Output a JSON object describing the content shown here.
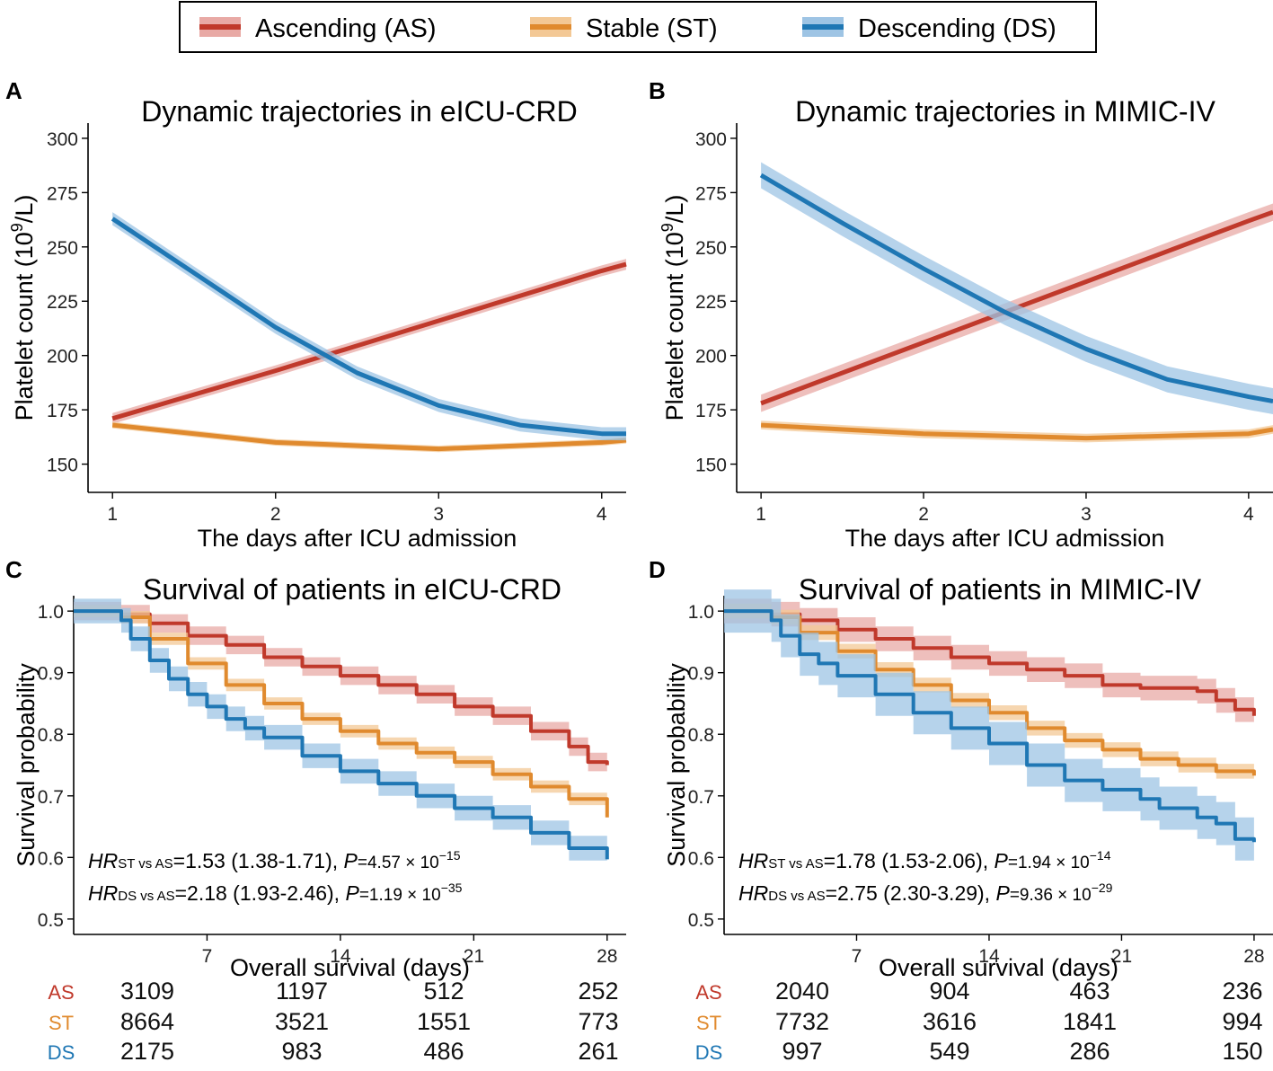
{
  "legend": {
    "items": [
      {
        "name": "Ascending (AS)",
        "color": "#c0392b"
      },
      {
        "name": "Stable (ST)",
        "color": "#e08a2e"
      },
      {
        "name": "Descending (DS)",
        "color": "#1f77b4"
      }
    ]
  },
  "colors": {
    "AS": "#c0392b",
    "ST": "#e08a2e",
    "DS": "#1f77b4",
    "AS_band": "#e8a9a5",
    "ST_band": "#f3c895",
    "DS_band": "#9ec4e4"
  },
  "chart_data": [
    {
      "panel": "A",
      "type": "line",
      "title": "Dynamic trajectories in eICU-CRD",
      "xlabel": "The days after ICU admission",
      "ylabel_main": "Platelet count  (10",
      "ylabel_sup": "9",
      "ylabel_end": "/L)",
      "xlim": [
        0.85,
        4.15
      ],
      "ylim": [
        137,
        307
      ],
      "xticks": [
        1,
        2,
        3,
        4
      ],
      "yticks": [
        150,
        175,
        200,
        225,
        250,
        275,
        300
      ],
      "series": [
        {
          "name": "AS",
          "x": [
            1,
            2,
            3,
            4,
            4.15
          ],
          "y": [
            171,
            193,
            216,
            239,
            242
          ],
          "band": 2.5
        },
        {
          "name": "ST",
          "x": [
            1,
            2,
            3,
            4,
            4.15
          ],
          "y": [
            168,
            160,
            157,
            160,
            161
          ],
          "band": 1.5
        },
        {
          "name": "DS",
          "x": [
            1,
            1.5,
            2,
            2.5,
            3,
            3.5,
            4,
            4.15
          ],
          "y": [
            263,
            238,
            213,
            192,
            177,
            168,
            164,
            164
          ],
          "band": 3
        }
      ]
    },
    {
      "panel": "B",
      "type": "line",
      "title": "Dynamic trajectories in MIMIC-IV",
      "xlabel": "The days after ICU admission",
      "ylabel_main": "Platelet count  (10",
      "ylabel_sup": "9",
      "ylabel_end": "/L)",
      "xlim": [
        0.85,
        4.15
      ],
      "ylim": [
        137,
        307
      ],
      "xticks": [
        1,
        2,
        3,
        4
      ],
      "yticks": [
        150,
        175,
        200,
        225,
        250,
        275,
        300
      ],
      "series": [
        {
          "name": "AS",
          "x": [
            1,
            2,
            3,
            4,
            4.15
          ],
          "y": [
            178,
            206,
            234,
            262,
            266
          ],
          "band": 4
        },
        {
          "name": "ST",
          "x": [
            1,
            2,
            3,
            4,
            4.15
          ],
          "y": [
            168,
            164,
            162,
            164,
            166
          ],
          "band": 2
        },
        {
          "name": "DS",
          "x": [
            1,
            1.5,
            2,
            2.5,
            3,
            3.5,
            4,
            4.15
          ],
          "y": [
            283,
            261,
            240,
            220,
            203,
            189,
            181,
            179
          ],
          "band": 6
        }
      ]
    },
    {
      "panel": "C",
      "type": "line",
      "title": "Survival of patients in eICU-CRD",
      "xlabel": "Overall survival (days)",
      "ylabel": "Survival probability",
      "xlim": [
        0,
        29
      ],
      "ylim": [
        0.475,
        1.025
      ],
      "xticks": [
        7,
        14,
        21,
        28
      ],
      "yticks": [
        0.5,
        0.6,
        0.7,
        0.8,
        0.9,
        1.0
      ],
      "series": [
        {
          "name": "AS",
          "x": [
            0,
            1.5,
            2.5,
            4,
            6,
            8,
            10,
            12,
            14,
            16,
            18,
            20,
            22,
            24,
            26,
            27,
            28
          ],
          "y": [
            1,
            1,
            0.995,
            0.98,
            0.96,
            0.945,
            0.925,
            0.91,
            0.895,
            0.88,
            0.865,
            0.845,
            0.83,
            0.805,
            0.78,
            0.755,
            0.75
          ],
          "band": 0.015
        },
        {
          "name": "ST",
          "x": [
            0,
            1.5,
            2.5,
            4,
            6,
            8,
            10,
            12,
            14,
            16,
            18,
            20,
            22,
            24,
            26,
            28
          ],
          "y": [
            1,
            1,
            0.99,
            0.955,
            0.915,
            0.88,
            0.85,
            0.825,
            0.805,
            0.785,
            0.77,
            0.755,
            0.735,
            0.715,
            0.695,
            0.665
          ],
          "band": 0.01
        },
        {
          "name": "DS",
          "x": [
            0,
            1.5,
            2.5,
            3,
            4,
            5,
            6,
            7,
            8,
            9,
            10,
            12,
            14,
            16,
            18,
            20,
            22,
            24,
            26,
            28
          ],
          "y": [
            1,
            1,
            0.985,
            0.955,
            0.92,
            0.89,
            0.865,
            0.845,
            0.825,
            0.81,
            0.795,
            0.765,
            0.74,
            0.72,
            0.7,
            0.68,
            0.665,
            0.64,
            0.615,
            0.597
          ],
          "band": 0.02
        }
      ],
      "annotations": [
        {
          "hr": "HR",
          "sub": "ST vs AS",
          "value": "=1.53 (1.38-1.71), ",
          "p": "P",
          "pval": "=4.57 × 10",
          "exp": "−15"
        },
        {
          "hr": "HR",
          "sub": "DS vs AS",
          "value": "=2.18 (1.93-2.46), ",
          "p": "P",
          "pval": "=1.19 × 10",
          "exp": "−35"
        }
      ],
      "risk_table": {
        "rows": [
          {
            "label": "AS",
            "values": [
              "3109",
              "1197",
              "512",
              "252"
            ]
          },
          {
            "label": "ST",
            "values": [
              "8664",
              "3521",
              "1551",
              "773"
            ]
          },
          {
            "label": "DS",
            "values": [
              "2175",
              "983",
              "486",
              "261"
            ]
          }
        ]
      }
    },
    {
      "panel": "D",
      "type": "line",
      "title": "Survival of patients in MIMIC-IV",
      "xlabel": "Overall survival (days)",
      "ylabel": "Survival probability",
      "xlim": [
        0,
        29
      ],
      "ylim": [
        0.475,
        1.025
      ],
      "xticks": [
        7,
        14,
        21,
        28
      ],
      "yticks": [
        0.5,
        0.6,
        0.7,
        0.8,
        0.9,
        1.0
      ],
      "series": [
        {
          "name": "AS",
          "x": [
            0,
            1.5,
            2.5,
            4,
            6,
            8,
            10,
            12,
            14,
            16,
            18,
            20,
            22,
            24,
            25,
            26,
            27,
            28
          ],
          "y": [
            1,
            1,
            0.995,
            0.985,
            0.97,
            0.955,
            0.94,
            0.925,
            0.915,
            0.905,
            0.895,
            0.88,
            0.875,
            0.875,
            0.87,
            0.855,
            0.84,
            0.83
          ],
          "band": 0.02
        },
        {
          "name": "ST",
          "x": [
            0,
            1.5,
            2.5,
            4,
            6,
            8,
            10,
            12,
            14,
            16,
            18,
            20,
            22,
            24,
            26,
            28
          ],
          "y": [
            1,
            1,
            0.99,
            0.965,
            0.935,
            0.905,
            0.88,
            0.855,
            0.835,
            0.81,
            0.79,
            0.775,
            0.76,
            0.75,
            0.74,
            0.733
          ],
          "band": 0.012
        },
        {
          "name": "DS",
          "x": [
            0,
            1.5,
            2.5,
            3,
            4,
            5,
            6,
            8,
            10,
            12,
            14,
            16,
            18,
            20,
            22,
            23,
            24,
            25,
            26,
            27,
            28
          ],
          "y": [
            1,
            1,
            0.985,
            0.96,
            0.93,
            0.915,
            0.895,
            0.865,
            0.835,
            0.81,
            0.785,
            0.75,
            0.725,
            0.71,
            0.695,
            0.68,
            0.68,
            0.665,
            0.655,
            0.63,
            0.625
          ],
          "band": 0.035
        }
      ],
      "annotations": [
        {
          "hr": "HR",
          "sub": "ST vs AS",
          "value": "=1.78 (1.53-2.06), ",
          "p": "P",
          "pval": "=1.94 × 10",
          "exp": "−14"
        },
        {
          "hr": "HR",
          "sub": "DS vs AS",
          "value": "=2.75 (2.30-3.29), ",
          "p": "P",
          "pval": "=9.36 × 10",
          "exp": "−29"
        }
      ],
      "risk_table": {
        "rows": [
          {
            "label": "AS",
            "values": [
              "2040",
              "904",
              "463",
              "236"
            ]
          },
          {
            "label": "ST",
            "values": [
              "7732",
              "3616",
              "1841",
              "994"
            ]
          },
          {
            "label": "DS",
            "values": [
              "997",
              "549",
              "286",
              "150"
            ]
          }
        ]
      }
    }
  ]
}
